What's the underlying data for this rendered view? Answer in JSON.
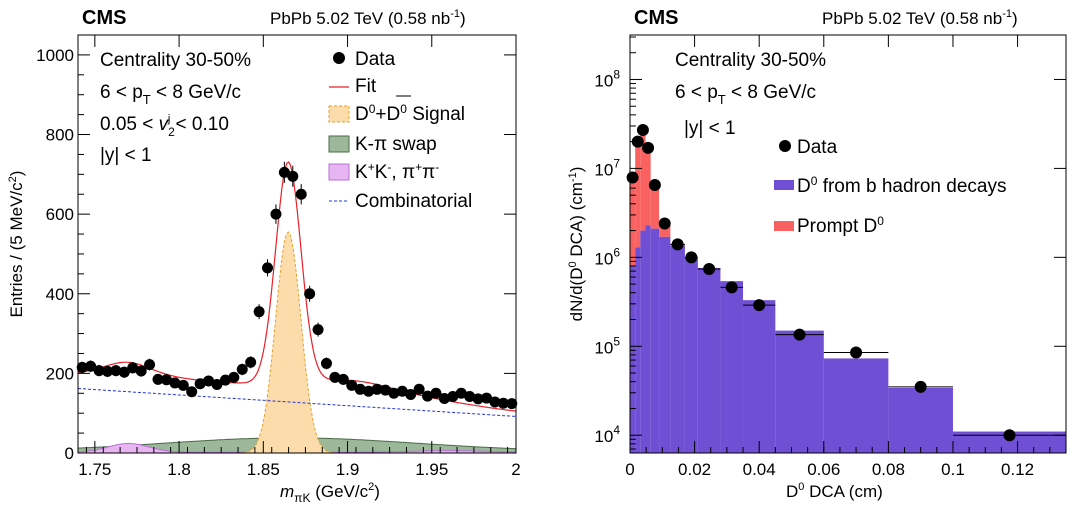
{
  "chart_data": [
    {
      "type": "scatter",
      "experiment": "CMS",
      "collision": "PbPb 5.02 TeV (0.58 nb",
      "collision_sup": "-1",
      "collision_close": ")",
      "annotations": [
        "Centrality 30-50%",
        "6 < p",
        "T",
        " < 8 GeV/c",
        "0.05 < ",
        "v",
        "2",
        "j",
        " < 0.10",
        "|y| < 1"
      ],
      "xlabel_main": "m",
      "xlabel_sub": "πK",
      "xlabel_rest": " (GeV/c",
      "xlabel_sup": "2",
      "xlabel_close": ")",
      "ylabel": "Entries / (5 MeV/c",
      "ylabel_sup": "2",
      "ylabel_close": ")",
      "xlim": [
        1.74,
        2.0
      ],
      "ylim": [
        0,
        1050
      ],
      "x_ticks": [
        1.75,
        1.8,
        1.85,
        1.9,
        1.95,
        2.0
      ],
      "x_tick_labels": [
        "1.75",
        "1.8",
        "1.85",
        "1.9",
        "1.95",
        "2"
      ],
      "y_ticks": [
        0,
        200,
        400,
        600,
        800,
        1000
      ],
      "y_tick_labels": [
        "0",
        "200",
        "400",
        "600",
        "800",
        "1000"
      ],
      "legend": {
        "data": "Data",
        "fit": "Fit",
        "signal_a": "D",
        "signal_sup0": "0",
        "signal_plus": "+D",
        "signal_sup1": "0",
        "signal_rest": " Signal",
        "swap": "K-π swap",
        "kk": "K",
        "kk_sup1": "+",
        "kk_mid": "K",
        "kk_sup2": "-",
        "kk_pi": ", π",
        "kk_sup3": "+",
        "kk_pi2": "π",
        "kk_sup4": "-",
        "comb": "Combinatorial"
      },
      "colors": {
        "fit": "#e8202a",
        "signal_fill": "#fddcab",
        "signal_line": "#e0a030",
        "swap_fill": "#9cb89a",
        "swap_line": "#4b6b48",
        "kk_fill": "#e7b6f2",
        "kk_line": "#b870d8",
        "comb": "#2233dd"
      },
      "data": [
        {
          "x": 1.7425,
          "y": 215
        },
        {
          "x": 1.7475,
          "y": 218
        },
        {
          "x": 1.7525,
          "y": 207
        },
        {
          "x": 1.7575,
          "y": 205
        },
        {
          "x": 1.7625,
          "y": 207
        },
        {
          "x": 1.7675,
          "y": 203
        },
        {
          "x": 1.7725,
          "y": 214
        },
        {
          "x": 1.7775,
          "y": 206
        },
        {
          "x": 1.7825,
          "y": 222
        },
        {
          "x": 1.7875,
          "y": 185
        },
        {
          "x": 1.7925,
          "y": 184
        },
        {
          "x": 1.7975,
          "y": 176
        },
        {
          "x": 1.8025,
          "y": 170
        },
        {
          "x": 1.8075,
          "y": 154
        },
        {
          "x": 1.8125,
          "y": 174
        },
        {
          "x": 1.8175,
          "y": 181
        },
        {
          "x": 1.8225,
          "y": 172
        },
        {
          "x": 1.8275,
          "y": 183
        },
        {
          "x": 1.8325,
          "y": 190
        },
        {
          "x": 1.8375,
          "y": 210
        },
        {
          "x": 1.8425,
          "y": 228
        },
        {
          "x": 1.8475,
          "y": 355
        },
        {
          "x": 1.8525,
          "y": 465
        },
        {
          "x": 1.8575,
          "y": 600
        },
        {
          "x": 1.8625,
          "y": 705
        },
        {
          "x": 1.8675,
          "y": 695
        },
        {
          "x": 1.8725,
          "y": 650
        },
        {
          "x": 1.8775,
          "y": 400
        },
        {
          "x": 1.8825,
          "y": 310
        },
        {
          "x": 1.8875,
          "y": 225
        },
        {
          "x": 1.8925,
          "y": 190
        },
        {
          "x": 1.8975,
          "y": 185
        },
        {
          "x": 1.9025,
          "y": 170
        },
        {
          "x": 1.9075,
          "y": 160
        },
        {
          "x": 1.9125,
          "y": 155
        },
        {
          "x": 1.9175,
          "y": 160
        },
        {
          "x": 1.9225,
          "y": 158
        },
        {
          "x": 1.9275,
          "y": 150
        },
        {
          "x": 1.9325,
          "y": 155
        },
        {
          "x": 1.9375,
          "y": 147
        },
        {
          "x": 1.9425,
          "y": 160
        },
        {
          "x": 1.9475,
          "y": 143
        },
        {
          "x": 1.9525,
          "y": 150
        },
        {
          "x": 1.9575,
          "y": 137
        },
        {
          "x": 1.9625,
          "y": 142
        },
        {
          "x": 1.9675,
          "y": 150
        },
        {
          "x": 1.9725,
          "y": 142
        },
        {
          "x": 1.9775,
          "y": 136
        },
        {
          "x": 1.9825,
          "y": 138
        },
        {
          "x": 1.9875,
          "y": 128
        },
        {
          "x": 1.9925,
          "y": 125
        },
        {
          "x": 1.9975,
          "y": 124
        }
      ]
    },
    {
      "type": "bar",
      "experiment": "CMS",
      "collision": "PbPb 5.02 TeV (0.58 nb",
      "collision_sup": "-1",
      "collision_close": ")",
      "annotations": [
        "Centrality 30-50%",
        "6 < p",
        "T",
        " < 8 GeV/c",
        "|y| < 1"
      ],
      "xlabel": "D",
      "xlabel_sup": "0",
      "xlabel_rest": " DCA (cm)",
      "ylabel": "dN/d(D",
      "ylabel_sup": "0",
      "ylabel_rest": " DCA) (cm",
      "ylabel_sup2": "-1",
      "ylabel_close": ")",
      "xlim": [
        0,
        0.135
      ],
      "ylim_log10": [
        3.8,
        8.5
      ],
      "log_scale_y": true,
      "x_ticks": [
        0,
        0.02,
        0.04,
        0.06,
        0.08,
        0.1,
        0.12
      ],
      "x_tick_labels": [
        "0",
        "0.02",
        "0.04",
        "0.06",
        "0.08",
        "0.1",
        "0.12"
      ],
      "y_ticks": [
        4,
        5,
        6,
        7,
        8
      ],
      "y_tick_base": "10",
      "y_tick_exps": [
        "4",
        "5",
        "6",
        "7",
        "8"
      ],
      "legend": {
        "data": "Data",
        "nonprompt_a": "D",
        "nonprompt_sup": "0",
        "nonprompt_rest": " from b hadron decays",
        "prompt_a": "Prompt D",
        "prompt_sup": "0"
      },
      "colors": {
        "nonprompt": "#6f4fd4",
        "prompt": "#fa6262"
      },
      "bins": [
        {
          "lo": 0.0,
          "hi": 0.0016,
          "nonprompt": 800000,
          "total": 7900000,
          "data": 7900000
        },
        {
          "lo": 0.0016,
          "hi": 0.0032,
          "nonprompt": 1300000,
          "total": 20000000,
          "data": 20000000
        },
        {
          "lo": 0.0032,
          "hi": 0.0048,
          "nonprompt": 2000000,
          "total": 27000000,
          "data": 27000000
        },
        {
          "lo": 0.0048,
          "hi": 0.0064,
          "nonprompt": 2300000,
          "total": 17000000,
          "data": 17000000
        },
        {
          "lo": 0.0064,
          "hi": 0.009,
          "nonprompt": 2100000,
          "total": 6500000,
          "data": 6500000
        },
        {
          "lo": 0.009,
          "hi": 0.0125,
          "nonprompt": 1700000,
          "total": 2500000,
          "data": 2400000
        },
        {
          "lo": 0.0125,
          "hi": 0.017,
          "nonprompt": 1350000,
          "total": 1400000,
          "data": 1400000
        },
        {
          "lo": 0.017,
          "hi": 0.021,
          "nonprompt": 1000000,
          "total": 1000000,
          "data": 1000000
        },
        {
          "lo": 0.021,
          "hi": 0.028,
          "nonprompt": 760000,
          "total": 760000,
          "data": 740000
        },
        {
          "lo": 0.028,
          "hi": 0.035,
          "nonprompt": 540000,
          "total": 540000,
          "data": 460000
        },
        {
          "lo": 0.035,
          "hi": 0.045,
          "nonprompt": 330000,
          "total": 330000,
          "data": 290000
        },
        {
          "lo": 0.045,
          "hi": 0.06,
          "nonprompt": 150000,
          "total": 150000,
          "data": 135000
        },
        {
          "lo": 0.06,
          "hi": 0.08,
          "nonprompt": 73000,
          "total": 73000,
          "data": 85000
        },
        {
          "lo": 0.08,
          "hi": 0.1,
          "nonprompt": 34000,
          "total": 34000,
          "data": 35000
        },
        {
          "lo": 0.1,
          "hi": 0.135,
          "nonprompt": 11000,
          "total": 11000,
          "data": 10000
        }
      ]
    }
  ]
}
